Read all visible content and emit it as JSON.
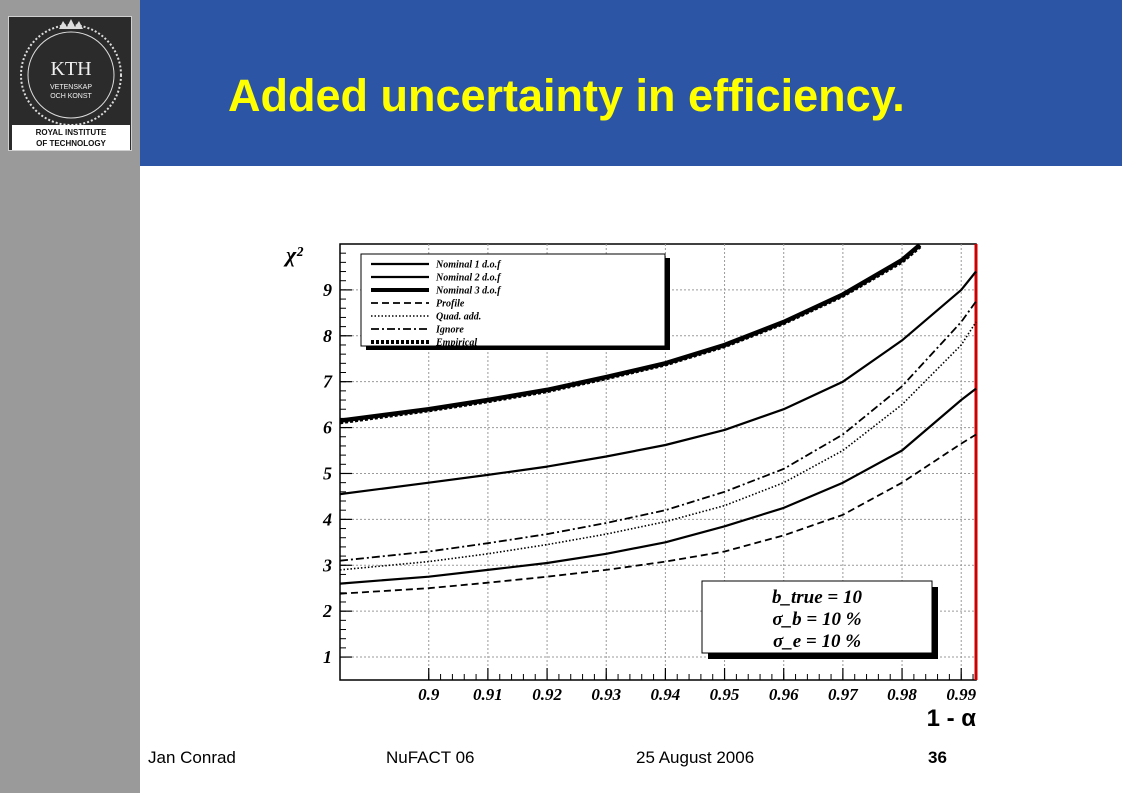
{
  "slide": {
    "title": "Added uncertainty in efficiency.",
    "logo": {
      "brand": "KTH",
      "motto_line1": "VETENSKAP",
      "motto_line2": "OCH KONST",
      "institute_line1": "ROYAL INSTITUTE",
      "institute_line2": "OF TECHNOLOGY"
    },
    "footer": {
      "author": "Jan Conrad",
      "event": "NuFACT 06",
      "date": "25 August 2006",
      "page": "36"
    },
    "colors": {
      "header_bg": "#2d55a6",
      "sidebar_bg": "#9a9a9a",
      "title": "#ffff00",
      "plot_border_right": "#cc0000"
    }
  },
  "chart_data": {
    "type": "line",
    "xlabel": "1 - α",
    "ylabel": "χ²",
    "xlim": [
      0.885,
      0.9925
    ],
    "ylim": [
      0.5,
      10.0
    ],
    "grid": true,
    "legend_position": "top-left",
    "x_ticks": [
      "0.9",
      "0.91",
      "0.92",
      "0.93",
      "0.94",
      "0.95",
      "0.96",
      "0.97",
      "0.98",
      "0.99"
    ],
    "y_ticks": [
      "1",
      "2",
      "3",
      "4",
      "5",
      "6",
      "7",
      "8",
      "9"
    ],
    "annotation": [
      "b_true = 10",
      "σ_b = 10 %",
      "σ_e = 10 %"
    ],
    "series": [
      {
        "name": "Nominal 1 d.o.f",
        "style": "solid",
        "width": 2.2,
        "x": [
          0.885,
          0.9,
          0.91,
          0.92,
          0.93,
          0.94,
          0.95,
          0.96,
          0.97,
          0.98,
          0.99,
          0.9925
        ],
        "y": [
          2.6,
          2.75,
          2.9,
          3.05,
          3.25,
          3.5,
          3.85,
          4.25,
          4.8,
          5.5,
          6.6,
          6.85
        ]
      },
      {
        "name": "Nominal 2 d.o.f",
        "style": "solid",
        "width": 2.2,
        "x": [
          0.885,
          0.9,
          0.91,
          0.92,
          0.93,
          0.94,
          0.95,
          0.96,
          0.97,
          0.98,
          0.99,
          0.9925
        ],
        "y": [
          4.55,
          4.8,
          4.97,
          5.15,
          5.37,
          5.62,
          5.95,
          6.4,
          7.0,
          7.9,
          9.0,
          9.4
        ]
      },
      {
        "name": "Nominal 3 d.o.f",
        "style": "solid",
        "width": 4.5,
        "x": [
          0.885,
          0.9,
          0.91,
          0.92,
          0.93,
          0.94,
          0.95,
          0.96,
          0.97,
          0.98,
          0.983
        ],
        "y": [
          6.15,
          6.4,
          6.6,
          6.82,
          7.1,
          7.4,
          7.8,
          8.3,
          8.9,
          9.65,
          9.98
        ]
      },
      {
        "name": "Profile",
        "style": "dashed",
        "width": 1.8,
        "x": [
          0.885,
          0.9,
          0.91,
          0.92,
          0.93,
          0.94,
          0.95,
          0.96,
          0.97,
          0.98,
          0.99,
          0.9925
        ],
        "y": [
          2.38,
          2.5,
          2.62,
          2.75,
          2.9,
          3.08,
          3.3,
          3.65,
          4.1,
          4.8,
          5.65,
          5.85
        ]
      },
      {
        "name": "Quad. add.",
        "style": "dotted",
        "width": 1.6,
        "x": [
          0.885,
          0.9,
          0.91,
          0.92,
          0.93,
          0.94,
          0.95,
          0.96,
          0.97,
          0.98,
          0.99,
          0.9925
        ],
        "y": [
          2.9,
          3.08,
          3.25,
          3.45,
          3.68,
          3.95,
          4.3,
          4.8,
          5.5,
          6.5,
          7.8,
          8.3
        ]
      },
      {
        "name": "Ignore",
        "style": "dashdot",
        "width": 1.8,
        "x": [
          0.885,
          0.9,
          0.91,
          0.92,
          0.93,
          0.94,
          0.95,
          0.96,
          0.97,
          0.98,
          0.99,
          0.9925
        ],
        "y": [
          3.1,
          3.3,
          3.48,
          3.68,
          3.92,
          4.2,
          4.6,
          5.1,
          5.85,
          6.9,
          8.3,
          8.75
        ]
      },
      {
        "name": "Empirical",
        "style": "thickdotted",
        "width": 4.5,
        "x": [
          0.885,
          0.9,
          0.91,
          0.92,
          0.93,
          0.94,
          0.95,
          0.96,
          0.97,
          0.98,
          0.983
        ],
        "y": [
          6.12,
          6.38,
          6.58,
          6.8,
          7.08,
          7.38,
          7.78,
          8.28,
          8.88,
          9.62,
          9.95
        ]
      }
    ]
  }
}
